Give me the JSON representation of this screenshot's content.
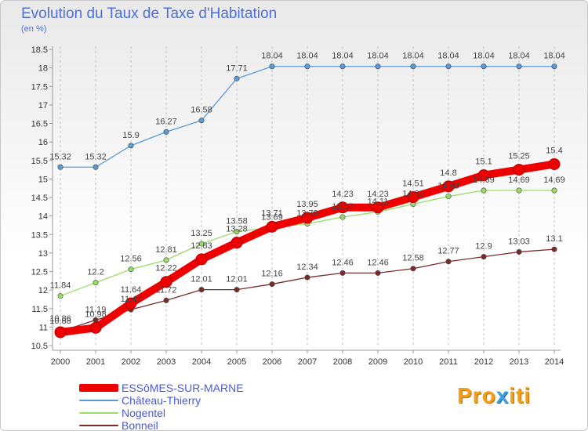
{
  "title": "Evolution du Taux de Taxe d'Habitation",
  "unit": "(en %)",
  "logo": {
    "prefix": "Pro",
    "x": "x",
    "suffix": "iti"
  },
  "chart_data": {
    "type": "line",
    "title": "Evolution du Taux de Taxe d'Habitation",
    "ylabel": "(en %)",
    "xlabel": "",
    "x": [
      "2000",
      "2001",
      "2002",
      "2003",
      "2004",
      "2005",
      "2006",
      "2007",
      "2008",
      "2009",
      "2010",
      "2011",
      "2012",
      "2013",
      "2014"
    ],
    "ylim": [
      10.5,
      18.5
    ],
    "yticks": [
      "10.5",
      "11",
      "11.5",
      "12",
      "12.5",
      "13",
      "13.5",
      "14",
      "14.5",
      "15",
      "15.5",
      "16",
      "16.5",
      "17",
      "17.5",
      "18",
      "18.5"
    ],
    "grid": "vertical dashed",
    "legend_placement": "bottom-left",
    "series": [
      {
        "name": "ESSôMES-SUR-MARNE",
        "color": "#ee0000",
        "values": [
          10.86,
          10.98,
          11.64,
          12.22,
          12.83,
          13.28,
          13.71,
          13.95,
          14.23,
          14.23,
          14.51,
          14.8,
          15.1,
          15.25,
          15.4
        ],
        "labels": [
          "10.86",
          "10.98",
          "11.64",
          "12.22",
          "12.83",
          "13.28",
          "13.71",
          "13.95",
          "14.23",
          "14.23",
          "14.51",
          "14.8",
          "15.1",
          "15.25",
          "15.4"
        ]
      },
      {
        "name": "Château-Thierry",
        "color": "#5b9bd5",
        "values": [
          15.32,
          15.32,
          15.9,
          16.27,
          16.58,
          17.71,
          18.04,
          18.04,
          18.04,
          18.04,
          18.04,
          18.04,
          18.04,
          18.04,
          18.04
        ],
        "labels": [
          "15.32",
          "15.32",
          "15.9",
          "16.27",
          "16.58",
          "17.71",
          "18.04",
          "18.04",
          "18.04",
          "18.04",
          "18.04",
          "18.04",
          "18.04",
          "18.04",
          "18.04"
        ]
      },
      {
        "name": "Nogentel",
        "color": "#99dd66",
        "values": [
          11.84,
          12.2,
          12.56,
          12.81,
          13.25,
          13.58,
          13.69,
          13.79,
          13.97,
          14.11,
          14.32,
          14.53,
          14.69,
          14.69,
          14.69
        ],
        "labels": [
          "11.84",
          "12.2",
          "12.56",
          "12.81",
          "13.25",
          "13.58",
          "13.69",
          "13.79",
          "13.97",
          "14.11",
          "14.32",
          "14.53",
          "14.69",
          "14.69",
          "14.69"
        ]
      },
      {
        "name": "Bonneil",
        "color": "#7a2a2a",
        "values": [
          10.88,
          11.19,
          11.47,
          11.72,
          12.01,
          12.01,
          12.16,
          12.34,
          12.46,
          12.46,
          12.58,
          12.77,
          12.9,
          13.03,
          13.1
        ],
        "labels": [
          "10.88",
          "11.19",
          "11.47",
          "11.72",
          "12.01",
          "12.01",
          "12.16",
          "12.34",
          "12.46",
          "12.46",
          "12.58",
          "12.77",
          "12.9",
          "13.03",
          "13.1"
        ]
      }
    ]
  }
}
